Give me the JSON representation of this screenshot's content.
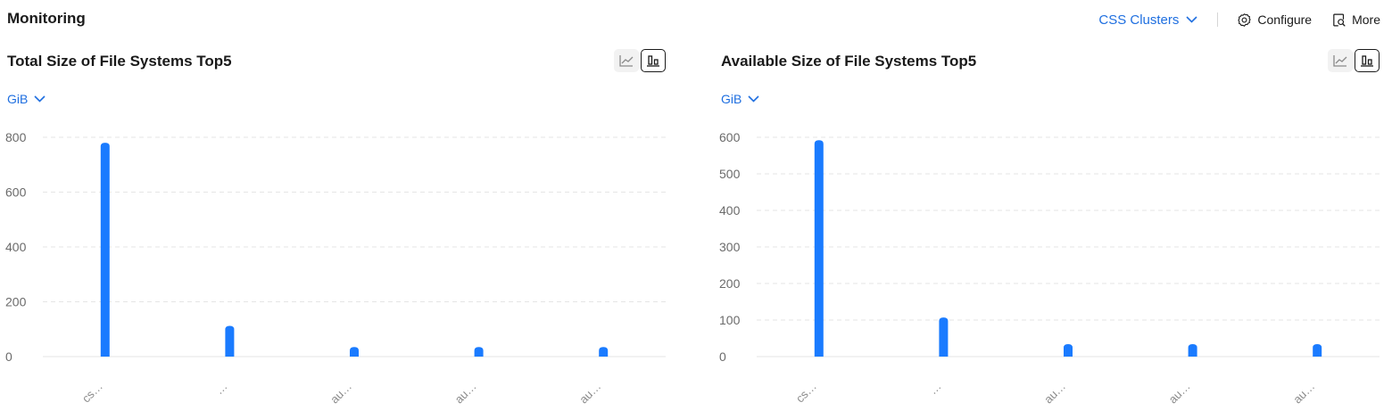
{
  "header": {
    "title": "Monitoring",
    "cluster_select": "CSS Clusters",
    "configure_label": "Configure",
    "more_label": "More"
  },
  "colors": {
    "accent": "#1f6fe0",
    "bar": "#1a7bff",
    "grid": "#e6e6e6"
  },
  "icons": [
    "chevron-down-icon",
    "gear-icon",
    "search-document-icon",
    "line-chart-icon",
    "bar-chart-icon"
  ],
  "panels": [
    {
      "title": "Total Size of File Systems Top5",
      "unit": "GiB",
      "view_options": [
        "line",
        "bar"
      ],
      "selected_view": "bar"
    },
    {
      "title": "Available Size of File Systems Top5",
      "unit": "GiB",
      "view_options": [
        "line",
        "bar"
      ],
      "selected_view": "bar"
    }
  ],
  "chart_data": [
    {
      "type": "bar",
      "title": "Total Size of File Systems Top5",
      "ylabel": "GiB",
      "categories": [
        "cs…",
        "…",
        "au…",
        "au…",
        "au…"
      ],
      "values": [
        780,
        112,
        35,
        35,
        35
      ],
      "ylim": [
        0,
        800
      ],
      "yticks": [
        0,
        200,
        400,
        600,
        800
      ],
      "grid": true
    },
    {
      "type": "bar",
      "title": "Available Size of File Systems Top5",
      "ylabel": "GiB",
      "categories": [
        "cs…",
        "…",
        "au…",
        "au…",
        "au…"
      ],
      "values": [
        592,
        107,
        34,
        34,
        34
      ],
      "ylim": [
        0,
        600
      ],
      "yticks": [
        0,
        100,
        200,
        300,
        400,
        500,
        600
      ],
      "grid": true
    }
  ]
}
